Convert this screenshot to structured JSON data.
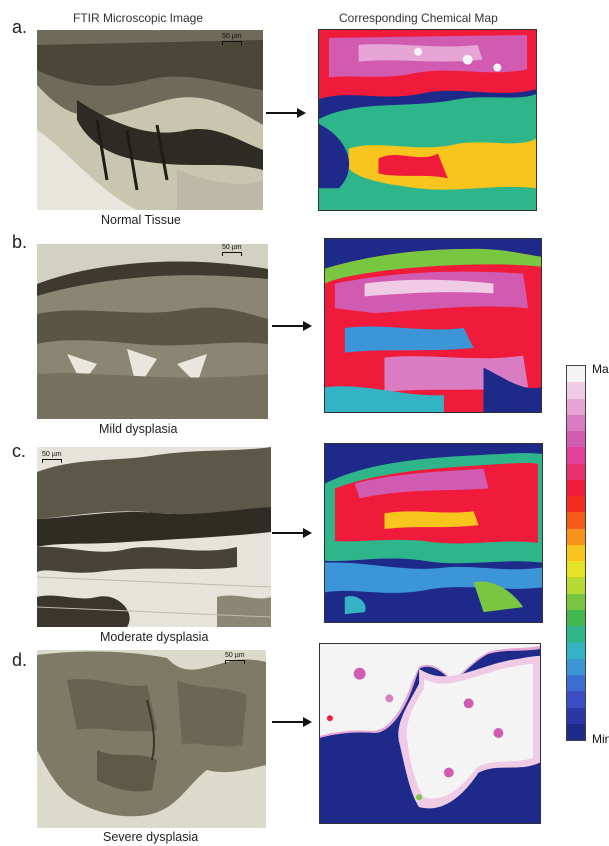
{
  "headers": {
    "left": "FTIR Microscopic Image",
    "right": "Corresponding Chemical Map"
  },
  "rows": [
    {
      "letter": "a.",
      "caption": "Normal Tissue",
      "scale": "50 µm"
    },
    {
      "letter": "b.",
      "caption": "Mild dysplasia",
      "scale": "50 µm"
    },
    {
      "letter": "c.",
      "caption": "Moderate dysplasia",
      "scale": "50 µm"
    },
    {
      "letter": "d.",
      "caption": "Severe dysplasia",
      "scale": "50 µm"
    }
  ],
  "legend": {
    "max_label": "Max",
    "min_label": "Min",
    "colors_top_to_bottom": [
      "#f4f4f4",
      "#f0cbe6",
      "#e6a5d4",
      "#d97cc1",
      "#d05bb0",
      "#e0409a",
      "#e8306e",
      "#f01a3a",
      "#f32a1e",
      "#f45a18",
      "#f7921b",
      "#f7c51e",
      "#e7e327",
      "#b6d936",
      "#79c741",
      "#43b84e",
      "#2fb58a",
      "#33b3c4",
      "#3b95d7",
      "#3c6fd1",
      "#3a4fc3",
      "#2c37a6",
      "#1d2a8a"
    ]
  }
}
